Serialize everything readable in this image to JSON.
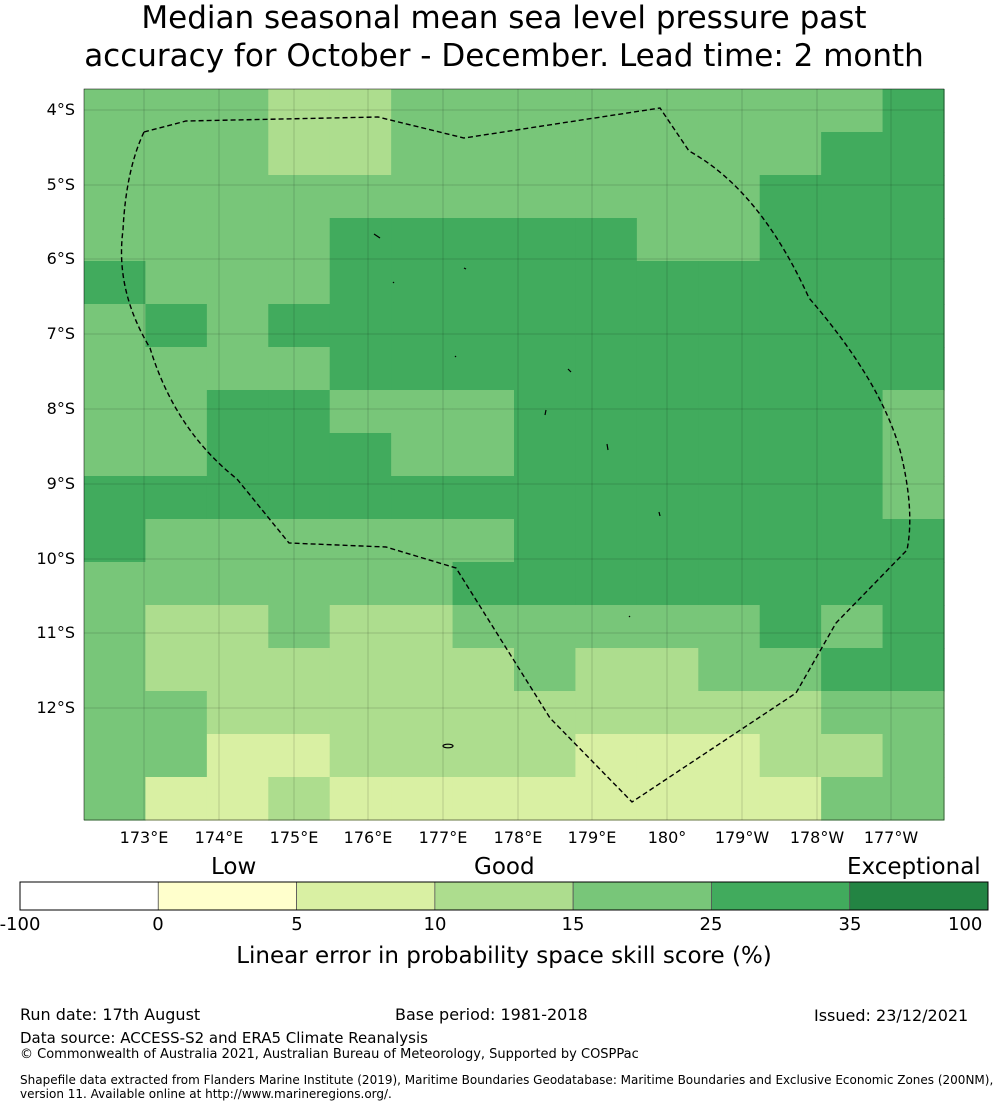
{
  "title_line1": "Median seasonal mean sea level pressure past",
  "title_line2": "accuracy for October - December. Lead time: 2 month",
  "map": {
    "lat_labels": [
      "4°S",
      "5°S",
      "6°S",
      "7°S",
      "8°S",
      "9°S",
      "10°S",
      "11°S",
      "12°S"
    ],
    "lon_labels": [
      "173°E",
      "174°E",
      "175°E",
      "176°E",
      "177°E",
      "178°E",
      "179°E",
      "180°",
      "179°W",
      "178°W",
      "177°W"
    ],
    "class_colors": [
      "#ffffcc",
      "#d9f0a3",
      "#addd8e",
      "#78c679",
      "#41ab5d",
      "#238443"
    ],
    "grid_cells": [
      [
        3,
        3,
        3,
        2,
        2,
        3,
        3,
        3,
        3,
        3,
        3,
        3,
        3,
        4
      ],
      [
        3,
        3,
        3,
        2,
        2,
        3,
        3,
        3,
        3,
        3,
        3,
        3,
        4,
        4
      ],
      [
        3,
        3,
        3,
        3,
        3,
        3,
        3,
        3,
        3,
        3,
        3,
        4,
        4,
        4
      ],
      [
        3,
        3,
        3,
        3,
        4,
        4,
        4,
        4,
        4,
        3,
        3,
        4,
        4,
        4
      ],
      [
        4,
        3,
        3,
        3,
        4,
        4,
        4,
        4,
        4,
        4,
        4,
        4,
        4,
        4
      ],
      [
        3,
        4,
        3,
        4,
        4,
        4,
        4,
        4,
        4,
        4,
        4,
        4,
        4,
        4
      ],
      [
        3,
        3,
        3,
        3,
        4,
        4,
        4,
        4,
        4,
        4,
        4,
        4,
        4,
        4
      ],
      [
        3,
        3,
        4,
        4,
        3,
        3,
        3,
        4,
        4,
        4,
        4,
        4,
        4,
        3
      ],
      [
        3,
        3,
        4,
        4,
        4,
        3,
        3,
        4,
        4,
        4,
        4,
        4,
        4,
        3
      ],
      [
        4,
        4,
        4,
        4,
        4,
        4,
        4,
        4,
        4,
        4,
        4,
        4,
        4,
        3
      ],
      [
        4,
        3,
        3,
        3,
        3,
        3,
        3,
        4,
        4,
        4,
        4,
        4,
        4,
        4
      ],
      [
        3,
        3,
        3,
        3,
        3,
        3,
        4,
        4,
        4,
        4,
        4,
        4,
        4,
        4
      ],
      [
        3,
        2,
        2,
        3,
        2,
        2,
        3,
        3,
        3,
        3,
        3,
        4,
        3,
        4
      ],
      [
        3,
        2,
        2,
        2,
        2,
        2,
        2,
        3,
        2,
        2,
        3,
        3,
        4,
        4
      ],
      [
        3,
        3,
        2,
        2,
        2,
        2,
        2,
        2,
        2,
        2,
        2,
        2,
        3,
        3
      ],
      [
        3,
        3,
        1,
        1,
        2,
        2,
        2,
        2,
        1,
        1,
        1,
        2,
        2,
        3
      ],
      [
        3,
        1,
        1,
        2,
        1,
        1,
        1,
        1,
        1,
        1,
        1,
        1,
        3,
        3
      ]
    ]
  },
  "legend": {
    "categories": [
      "Low",
      "Good",
      "Exceptional"
    ],
    "tick_labels": [
      "-100",
      "0",
      "5",
      "10",
      "15",
      "25",
      "35",
      "100"
    ],
    "colors": [
      "#ffffff",
      "#ffffcc",
      "#d9f0a3",
      "#addd8e",
      "#78c679",
      "#41ab5d",
      "#238443"
    ],
    "title": "Linear error in probability space skill score (%)"
  },
  "footer": {
    "run_date": "Run date: 17th August",
    "base_period": "Base period: 1981-2018",
    "issued": "Issued: 23/12/2021",
    "data_source": "Data source: ACCESS-S2 and ERA5 Climate Reanalysis",
    "copyright": "© Commonwealth of Australia 2021, Australian Bureau of Meteorology, Supported by COSPPac",
    "shapefile": "Shapefile data extracted from Flanders Marine Institute (2019), Maritime Boundaries Geodatabase: Maritime Boundaries and Exclusive Economic Zones (200NM), version 11. Available online at http://www.marineregions.org/."
  }
}
